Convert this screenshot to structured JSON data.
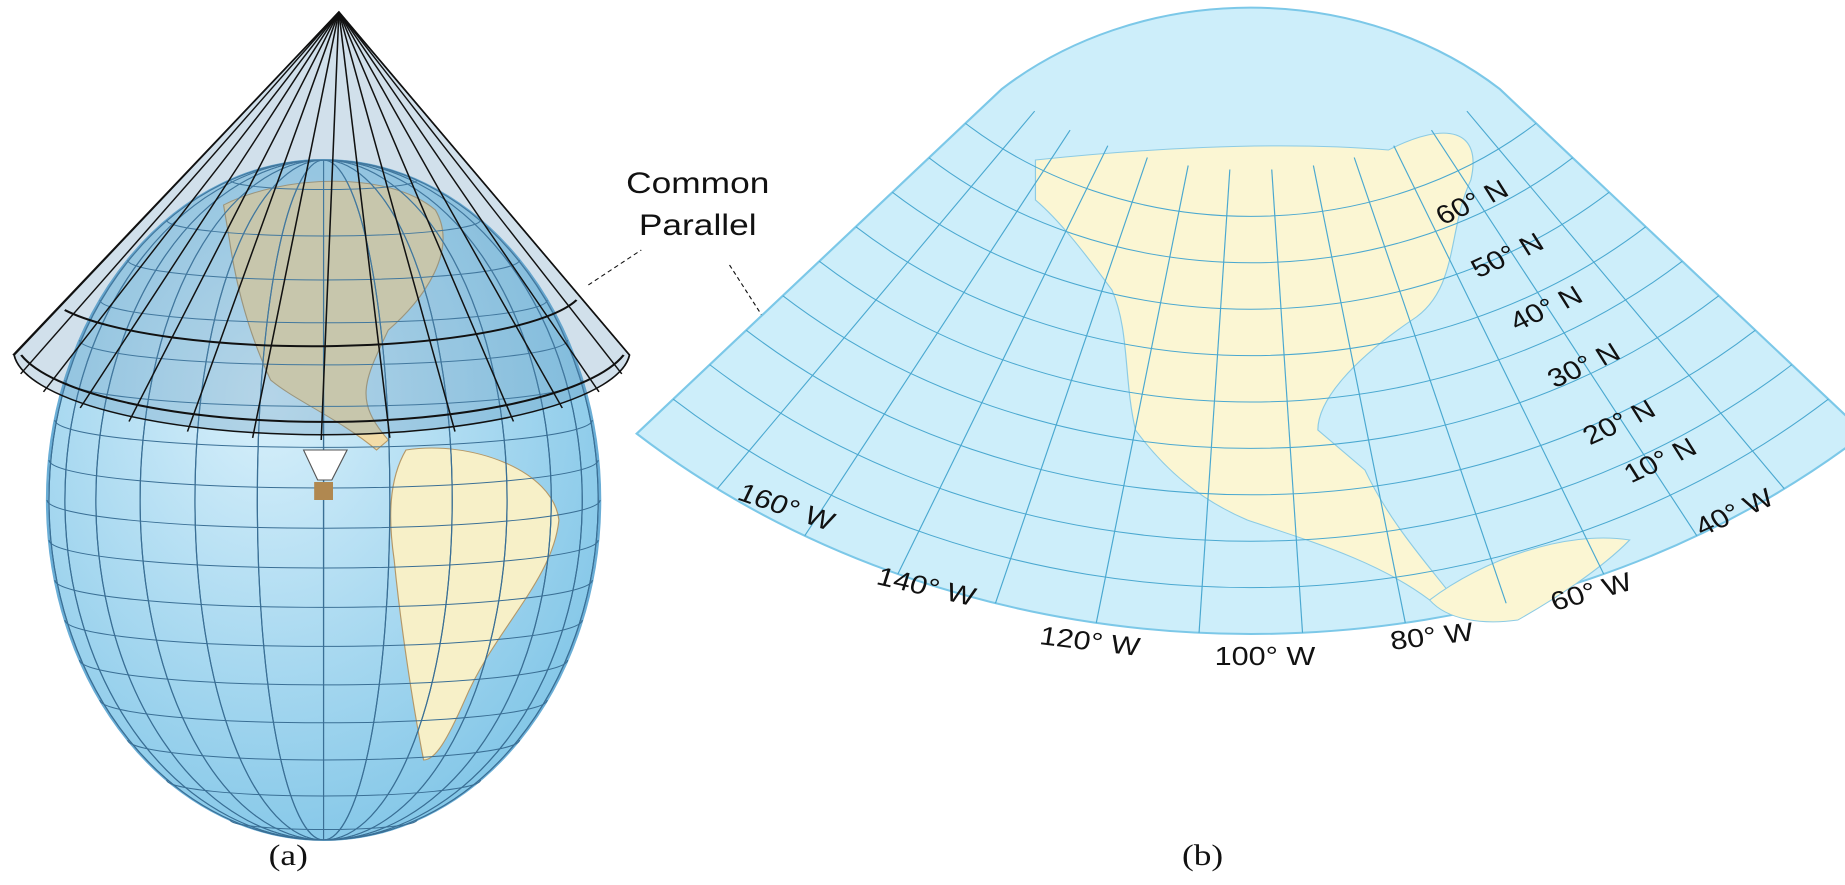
{
  "figure_a": {
    "label_lines": [
      "Common",
      "Parallel"
    ],
    "caption": "(a)"
  },
  "figure_b": {
    "latitude_labels": [
      "60° N",
      "50° N",
      "40° N",
      "30° N",
      "20° N",
      "10° N"
    ],
    "longitude_labels": [
      "160° W",
      "140° W",
      "120° W",
      "100° W",
      "80° W",
      "60° W",
      "40° W"
    ],
    "caption": "(b)"
  }
}
